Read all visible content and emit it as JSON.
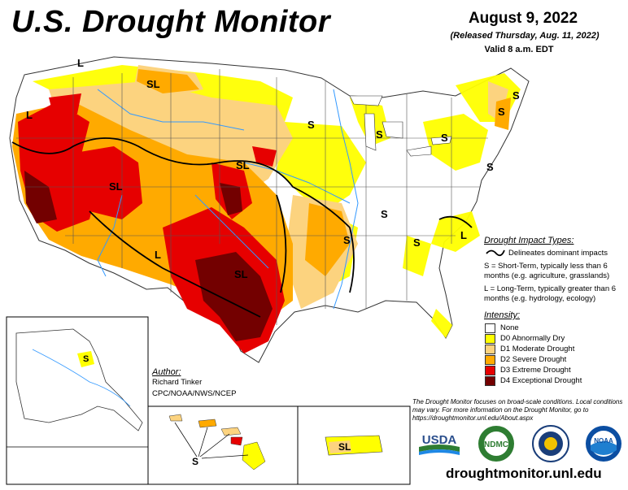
{
  "title": "U.S. Drought Monitor",
  "date": "August 9, 2022",
  "released": "(Released Thursday, Aug. 11, 2022)",
  "valid": "Valid 8 a.m. EDT",
  "impact_types": {
    "heading": "Drought Impact Types:",
    "delineates": "Delineates dominant impacts",
    "short_term": "S = Short-Term, typically less than 6 months (e.g. agriculture, grasslands)",
    "long_term": "L = Long-Term, typically greater than 6 months (e.g. hydrology, ecology)"
  },
  "intensity": {
    "heading": "Intensity:",
    "levels": [
      {
        "label": "None",
        "color": "#ffffff"
      },
      {
        "label": "D0 Abnormally Dry",
        "color": "#ffff00"
      },
      {
        "label": "D1 Moderate Drought",
        "color": "#fcd37f"
      },
      {
        "label": "D2 Severe Drought",
        "color": "#ffaa00"
      },
      {
        "label": "D3 Extreme Drought",
        "color": "#e60000"
      },
      {
        "label": "D4 Exceptional Drought",
        "color": "#730000"
      }
    ]
  },
  "author": {
    "heading": "Author:",
    "name": "Richard Tinker",
    "org": "CPC/NOAA/NWS/NCEP"
  },
  "note": "The Drought Monitor focuses on broad-scale conditions. Local conditions may vary. For more information on the Drought Monitor, go to https://droughtmonitor.unl.edu/About.aspx",
  "url": "droughtmonitor.unl.edu",
  "map_labels": [
    "L",
    "SL",
    "L",
    "SL",
    "S",
    "S",
    "S",
    "S",
    "SL",
    "S",
    "L",
    "S",
    "SL",
    "S",
    "L",
    "S",
    "S",
    "SL"
  ],
  "logos": {
    "usda": "USDA",
    "ndmc": "NDMC",
    "noaa": "NOAA"
  }
}
